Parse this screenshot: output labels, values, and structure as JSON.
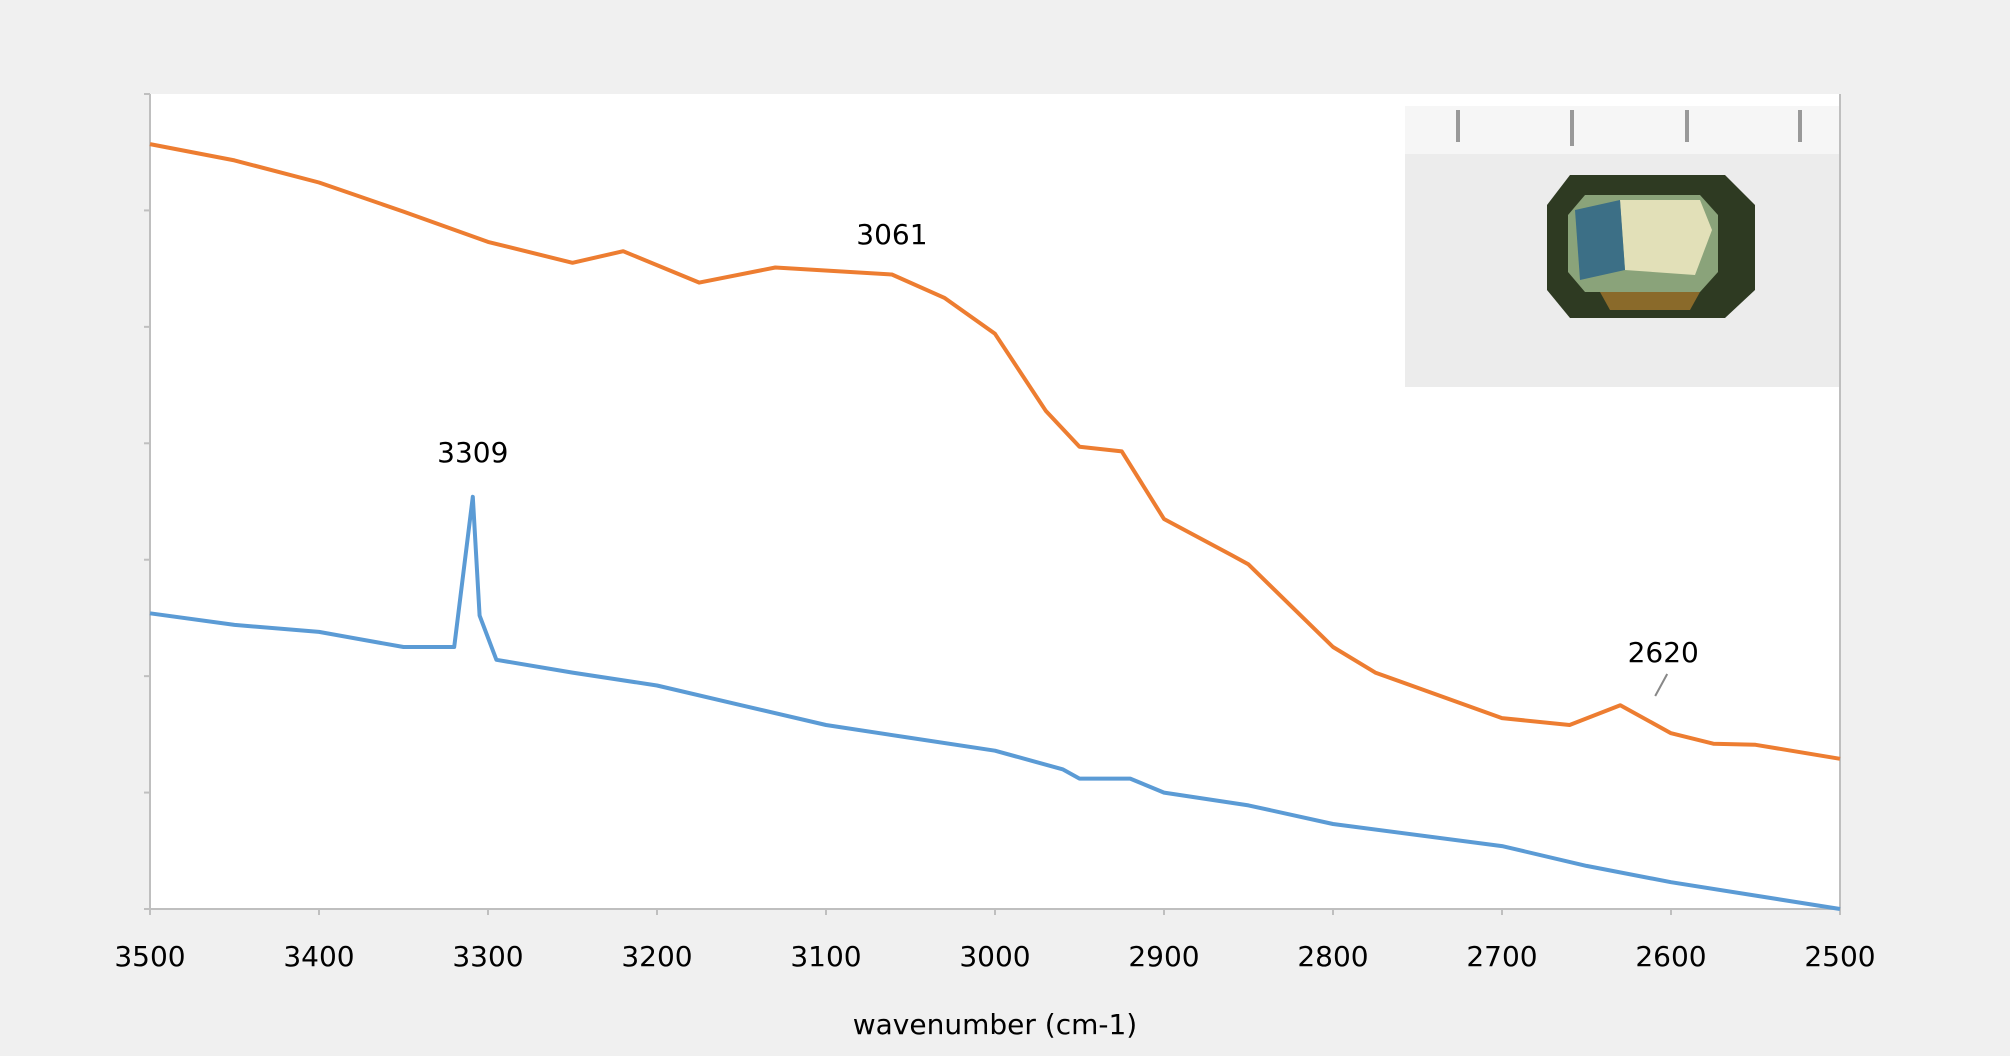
{
  "chart_data": {
    "type": "line",
    "x_label": "wavenumber (cm-1)",
    "xlim": [
      3500,
      2500
    ],
    "xticks": [
      3500,
      3400,
      3300,
      3200,
      3100,
      3000,
      2900,
      2800,
      2700,
      2600,
      2500
    ],
    "ylim": [
      0,
      7
    ],
    "yticks": [
      0,
      1,
      2,
      3,
      4,
      5,
      6,
      7
    ],
    "series": [
      {
        "color": "#ed7d31",
        "x": [
          3500,
          3450,
          3400,
          3350,
          3300,
          3250,
          3220,
          3175,
          3130,
          3061,
          3030,
          3000,
          2970,
          2950,
          2925,
          2900,
          2860,
          2850,
          2800,
          2775,
          2700,
          2660,
          2630,
          2600,
          2575,
          2550,
          2500
        ],
        "values": [
          6.57,
          6.43,
          6.24,
          5.99,
          5.73,
          5.55,
          5.65,
          5.38,
          5.51,
          5.45,
          5.25,
          4.94,
          4.28,
          3.97,
          3.93,
          3.35,
          3.04,
          2.96,
          2.25,
          2.03,
          1.64,
          1.58,
          1.75,
          1.51,
          1.42,
          1.41,
          1.29
        ]
      },
      {
        "color": "#5b9bd5",
        "x": [
          3500,
          3450,
          3400,
          3350,
          3320,
          3309,
          3305,
          3295,
          3250,
          3200,
          3150,
          3100,
          3050,
          3000,
          2960,
          2950,
          2920,
          2900,
          2850,
          2800,
          2700,
          2650,
          2600,
          2500
        ],
        "values": [
          2.54,
          2.44,
          2.38,
          2.25,
          2.25,
          3.54,
          2.52,
          2.14,
          2.03,
          1.92,
          1.75,
          1.58,
          1.47,
          1.36,
          1.2,
          1.12,
          1.12,
          1.0,
          0.89,
          0.73,
          0.54,
          0.37,
          0.23,
          0.0
        ]
      }
    ],
    "annotations": [
      {
        "label": "3309",
        "x": 3309,
        "y": 3.91
      },
      {
        "label": "3061",
        "x": 3061,
        "y": 5.78
      },
      {
        "label": "2620",
        "x": 2620,
        "y": 2.19
      }
    ]
  }
}
